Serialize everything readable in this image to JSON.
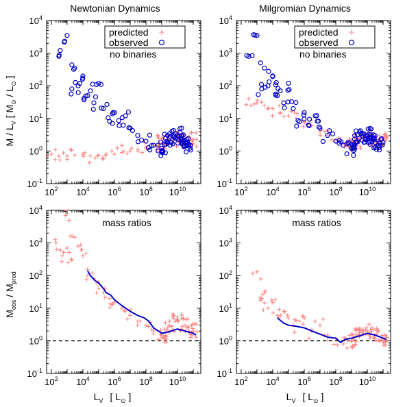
{
  "chart_data": [
    {
      "type": "scatter",
      "title": "Newtonian Dynamics",
      "xlabel": "",
      "ylabel": "M / L_V  [ M_sun / L_sun ]",
      "x_scale": "log",
      "y_scale": "log",
      "xlim": [
        50,
        300000000000
      ],
      "ylim": [
        0.1,
        10000
      ],
      "x_ticks": [
        "10^2",
        "10^4",
        "10^6",
        "10^8",
        "10^10"
      ],
      "y_ticks": [
        "10^-1",
        "10^0",
        "10^1",
        "10^2",
        "10^3",
        "10^4"
      ],
      "legend": {
        "position": "top-right",
        "entries": [
          "predicted",
          "observed"
        ],
        "note": "no binaries"
      },
      "series": [
        {
          "name": "predicted",
          "marker": "plus",
          "color": "#ff7f7f",
          "points": [
            [
              100,
              0.8
            ],
            [
              300,
              0.7
            ],
            [
              1000,
              0.7
            ],
            [
              3000,
              0.75
            ],
            [
              10000,
              0.8
            ],
            [
              30000,
              0.7
            ],
            [
              100000,
              0.75
            ],
            [
              300000,
              0.8
            ],
            [
              1000000,
              0.8
            ],
            [
              3000000,
              0.9
            ],
            [
              10000000,
              1.0
            ],
            [
              30000000,
              1.1
            ],
            [
              100000000,
              1.3
            ],
            [
              300000000,
              1.5
            ],
            [
              1000000000,
              1.8
            ],
            [
              3000000000,
              2.0
            ],
            [
              10000000000,
              2.3
            ],
            [
              30000000000,
              2.1
            ],
            [
              100000000000,
              2.2
            ]
          ]
        },
        {
          "name": "observed",
          "marker": "circle",
          "color": "#0000cc",
          "points": [
            [
              300,
              800
            ],
            [
              1000,
              3500
            ],
            [
              3000,
              350
            ],
            [
              2000,
              80
            ],
            [
              5000,
              100
            ],
            [
              10000,
              200
            ],
            [
              20000,
              50
            ],
            [
              30000,
              70
            ],
            [
              50000,
              30
            ],
            [
              100000,
              120
            ],
            [
              200000,
              20
            ],
            [
              500000,
              8
            ],
            [
              1000000,
              15
            ],
            [
              2000000,
              6
            ],
            [
              5000000,
              12
            ],
            [
              10000000,
              5
            ],
            [
              30000000,
              3
            ],
            [
              100000000,
              2
            ],
            [
              300000000,
              1.5
            ],
            [
              1000000000,
              1.2
            ],
            [
              3000000000,
              2.5
            ],
            [
              10000000000,
              3
            ],
            [
              20000000000,
              2
            ],
            [
              50000000000,
              1.5
            ]
          ]
        }
      ]
    },
    {
      "type": "scatter",
      "title": "Milgromian Dynamics",
      "xlabel": "",
      "ylabel": "",
      "x_scale": "log",
      "y_scale": "log",
      "xlim": [
        50,
        300000000000
      ],
      "ylim": [
        0.1,
        10000
      ],
      "x_ticks": [
        "10^2",
        "10^4",
        "10^6",
        "10^8",
        "10^10"
      ],
      "y_ticks": [
        "10^-1",
        "10^0",
        "10^1",
        "10^2",
        "10^3",
        "10^4"
      ],
      "legend": {
        "position": "top-right",
        "entries": [
          "predicted",
          "observed"
        ],
        "note": "no binaries"
      },
      "series": [
        {
          "name": "predicted",
          "marker": "plus",
          "color": "#ff7f7f",
          "points": [
            [
              300,
              40
            ],
            [
              1000,
              30
            ],
            [
              3000,
              25
            ],
            [
              10000,
              20
            ],
            [
              30000,
              15
            ],
            [
              100000,
              12
            ],
            [
              300000,
              10
            ],
            [
              1000000,
              8
            ],
            [
              3000000,
              6
            ],
            [
              10000000,
              4
            ],
            [
              30000000,
              3
            ],
            [
              100000000,
              2
            ],
            [
              300000000,
              1.7
            ],
            [
              1000000000,
              1.5
            ],
            [
              3000000000,
              2
            ],
            [
              10000000000,
              2.5
            ],
            [
              30000000000,
              2
            ],
            [
              100000000000,
              2.2
            ]
          ]
        },
        {
          "name": "observed",
          "marker": "circle",
          "color": "#0000cc",
          "points": [
            [
              300,
              800
            ],
            [
              1000,
              3500
            ],
            [
              3000,
              350
            ],
            [
              2000,
              80
            ],
            [
              5000,
              100
            ],
            [
              10000,
              200
            ],
            [
              20000,
              50
            ],
            [
              30000,
              70
            ],
            [
              50000,
              30
            ],
            [
              100000,
              120
            ],
            [
              200000,
              20
            ],
            [
              500000,
              8
            ],
            [
              1000000,
              15
            ],
            [
              2000000,
              6
            ],
            [
              5000000,
              12
            ],
            [
              10000000,
              5
            ],
            [
              30000000,
              3
            ],
            [
              100000000,
              2
            ],
            [
              300000000,
              1.5
            ],
            [
              1000000000,
              1.2
            ],
            [
              3000000000,
              2.5
            ],
            [
              10000000000,
              3
            ],
            [
              20000000000,
              2
            ],
            [
              50000000000,
              1.5
            ]
          ]
        }
      ]
    },
    {
      "type": "scatter",
      "title": "",
      "annotation": "mass ratios",
      "xlabel": "L_V  [ L_sun ]",
      "ylabel": "M_obs / M_pred",
      "x_scale": "log",
      "y_scale": "log",
      "xlim": [
        50,
        300000000000
      ],
      "ylim": [
        0.1,
        10000
      ],
      "x_ticks": [
        "10^2",
        "10^4",
        "10^6",
        "10^8",
        "10^10"
      ],
      "y_ticks": [
        "10^-1",
        "10^0",
        "10^1",
        "10^2",
        "10^3",
        "10^4"
      ],
      "reference_line": 1.0,
      "series": [
        {
          "name": "",
          "marker": "plus",
          "color": "#ff7f7f",
          "points": [
            [
              200,
              1000
            ],
            [
              500,
              400
            ],
            [
              800,
              7000
            ],
            [
              1000,
              700
            ],
            [
              2000,
              300
            ],
            [
              3000,
              1500
            ],
            [
              5000,
              800
            ],
            [
              10000,
              400
            ],
            [
              20000,
              100
            ],
            [
              50000,
              80
            ],
            [
              100000,
              40
            ],
            [
              200000,
              30
            ],
            [
              500000,
              20
            ],
            [
              1000000,
              15
            ],
            [
              3000000,
              10
            ],
            [
              10000000,
              6
            ],
            [
              30000000,
              4
            ],
            [
              100000000,
              3
            ],
            [
              300000000,
              2
            ],
            [
              1000000000,
              1.5
            ],
            [
              3000000000,
              3
            ],
            [
              10000000000,
              4
            ],
            [
              30000000000,
              3
            ],
            [
              100000000000,
              2
            ]
          ]
        },
        {
          "name": "",
          "marker": "line",
          "color": "#0000cc",
          "points": [
            [
              20000,
              140
            ],
            [
              30000,
              100
            ],
            [
              60000,
              70
            ],
            [
              100000,
              60
            ],
            [
              200000,
              40
            ],
            [
              300000,
              30
            ],
            [
              600000,
              25
            ],
            [
              1000000,
              18
            ],
            [
              3000000,
              12
            ],
            [
              10000000,
              8
            ],
            [
              30000000,
              6
            ],
            [
              80000000,
              5
            ],
            [
              150000000,
              4
            ],
            [
              300000000,
              2.5
            ],
            [
              600000000,
              2.0
            ],
            [
              1000000000,
              1.7
            ],
            [
              3000000000,
              1.9
            ],
            [
              10000000000,
              2.3
            ],
            [
              30000000000,
              2.0
            ],
            [
              100000000000,
              1.7
            ],
            [
              150000000000,
              1.5
            ]
          ]
        }
      ]
    },
    {
      "type": "scatter",
      "title": "",
      "annotation": "mass ratios",
      "xlabel": "L_V  [ L_sun ]",
      "ylabel": "",
      "x_scale": "log",
      "y_scale": "log",
      "xlim": [
        50,
        300000000000
      ],
      "ylim": [
        0.1,
        10000
      ],
      "x_ticks": [
        "10^2",
        "10^4",
        "10^6",
        "10^8",
        "10^10"
      ],
      "y_ticks": [
        "10^-1",
        "10^0",
        "10^1",
        "10^2",
        "10^3",
        "10^4"
      ],
      "reference_line": 1.0,
      "series": [
        {
          "name": "",
          "marker": "plus",
          "color": "#ff7f7f",
          "points": [
            [
              1000,
              130
            ],
            [
              2000,
              20
            ],
            [
              3000,
              30
            ],
            [
              5000,
              10
            ],
            [
              10000,
              15
            ],
            [
              20000,
              6
            ],
            [
              50000,
              8
            ],
            [
              100000,
              5
            ],
            [
              200000,
              3
            ],
            [
              500000,
              4
            ],
            [
              1000000,
              5
            ],
            [
              3000000,
              2
            ],
            [
              10000000,
              3
            ],
            [
              30000000,
              1.5
            ],
            [
              100000000,
              1.2
            ],
            [
              300000000,
              0.8
            ],
            [
              1000000000,
              1.0
            ],
            [
              3000000000,
              1.5
            ],
            [
              10000000000,
              2
            ],
            [
              30000000000,
              1.5
            ],
            [
              100000000000,
              1.2
            ]
          ]
        },
        {
          "name": "",
          "marker": "line",
          "color": "#0000cc",
          "points": [
            [
              20000,
              5
            ],
            [
              50000,
              3.5
            ],
            [
              100000,
              3.0
            ],
            [
              300000,
              2.8
            ],
            [
              1000000,
              2.5
            ],
            [
              3000000,
              2.0
            ],
            [
              10000000,
              1.6
            ],
            [
              30000000,
              1.3
            ],
            [
              100000000,
              1.2
            ],
            [
              200000000,
              0.9
            ],
            [
              400000000,
              1.1
            ],
            [
              1000000000,
              1.2
            ],
            [
              3000000000,
              1.4
            ],
            [
              10000000000,
              1.7
            ],
            [
              30000000000,
              1.5
            ],
            [
              100000000000,
              1.2
            ],
            [
              150000000000,
              1.1
            ]
          ]
        }
      ]
    }
  ],
  "labels": {
    "title_left": "Newtonian Dynamics",
    "title_right": "Milgromian Dynamics",
    "legend_predicted": "predicted",
    "legend_observed": "observed",
    "legend_note": "no binaries",
    "mass_ratios_left": "mass ratios",
    "mass_ratios_right": "mass ratios",
    "ylabel_top": "M / L",
    "ylabel_top_sub": "V",
    "ylabel_top_unit": "[ M",
    "ylabel_top_unit2": " / L",
    "ylabel_top_close": " ]",
    "ylabel_bottom_m": "M",
    "ylabel_bottom_obs": "obs",
    "ylabel_bottom_mid": " / M",
    "ylabel_bottom_pred": "pred",
    "xlabel_L": "L",
    "xlabel_V": "V",
    "xlabel_unit": "[ L",
    "xlabel_close": " ]",
    "sun": "⊙"
  }
}
